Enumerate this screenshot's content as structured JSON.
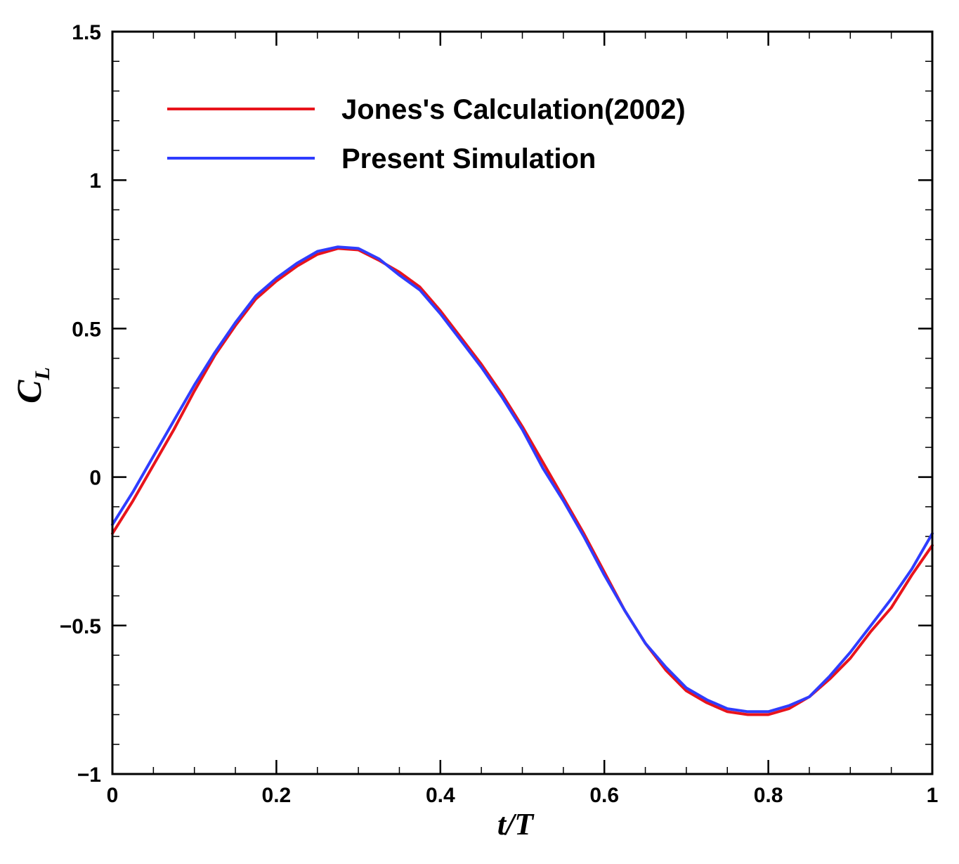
{
  "chart_data": {
    "type": "line",
    "xlabel": "t/T",
    "ylabel": "C",
    "ylabel_subscript": "L",
    "xlim": [
      0,
      1
    ],
    "ylim": [
      -1,
      1.5
    ],
    "x_ticks": [
      {
        "value": 0,
        "label": "0"
      },
      {
        "value": 0.2,
        "label": "0.2"
      },
      {
        "value": 0.4,
        "label": "0.4"
      },
      {
        "value": 0.6,
        "label": "0.6"
      },
      {
        "value": 0.8,
        "label": "0.8"
      },
      {
        "value": 1,
        "label": "1"
      }
    ],
    "y_ticks": [
      {
        "value": -1,
        "label": "−1"
      },
      {
        "value": -0.5,
        "label": "−0.5"
      },
      {
        "value": 0,
        "label": "0"
      },
      {
        "value": 0.5,
        "label": "0.5"
      },
      {
        "value": 1,
        "label": "1"
      },
      {
        "value": 1.5,
        "label": "1.5"
      }
    ],
    "x_minor_step": 0.05,
    "y_minor_step": 0.1,
    "grid": false,
    "legend_position": "top-left",
    "series": [
      {
        "name": "Jones's Calculation(2002)",
        "color": "#e8141c",
        "x": [
          0,
          0.025,
          0.05,
          0.075,
          0.1,
          0.125,
          0.15,
          0.175,
          0.2,
          0.225,
          0.25,
          0.275,
          0.3,
          0.325,
          0.35,
          0.375,
          0.4,
          0.425,
          0.45,
          0.475,
          0.5,
          0.525,
          0.55,
          0.575,
          0.6,
          0.625,
          0.65,
          0.675,
          0.7,
          0.725,
          0.75,
          0.775,
          0.8,
          0.825,
          0.85,
          0.875,
          0.9,
          0.925,
          0.95,
          0.975,
          1
        ],
        "y": [
          -0.19,
          -0.08,
          0.04,
          0.16,
          0.29,
          0.41,
          0.51,
          0.6,
          0.66,
          0.71,
          0.75,
          0.77,
          0.765,
          0.73,
          0.69,
          0.64,
          0.56,
          0.47,
          0.38,
          0.28,
          0.17,
          0.05,
          -0.07,
          -0.19,
          -0.32,
          -0.45,
          -0.56,
          -0.65,
          -0.72,
          -0.76,
          -0.79,
          -0.8,
          -0.8,
          -0.78,
          -0.74,
          -0.68,
          -0.61,
          -0.52,
          -0.44,
          -0.33,
          -0.23
        ]
      },
      {
        "name": "Present Simulation",
        "color": "#2f3cff",
        "x": [
          0,
          0.025,
          0.05,
          0.075,
          0.1,
          0.125,
          0.15,
          0.175,
          0.2,
          0.225,
          0.25,
          0.275,
          0.3,
          0.325,
          0.35,
          0.375,
          0.4,
          0.425,
          0.45,
          0.475,
          0.5,
          0.525,
          0.55,
          0.575,
          0.6,
          0.625,
          0.65,
          0.675,
          0.7,
          0.725,
          0.75,
          0.775,
          0.8,
          0.825,
          0.85,
          0.875,
          0.9,
          0.925,
          0.95,
          0.975,
          1
        ],
        "y": [
          -0.16,
          -0.05,
          0.07,
          0.19,
          0.31,
          0.42,
          0.52,
          0.61,
          0.67,
          0.72,
          0.76,
          0.775,
          0.77,
          0.735,
          0.68,
          0.63,
          0.55,
          0.46,
          0.37,
          0.27,
          0.16,
          0.03,
          -0.08,
          -0.2,
          -0.33,
          -0.45,
          -0.56,
          -0.64,
          -0.71,
          -0.75,
          -0.78,
          -0.79,
          -0.79,
          -0.77,
          -0.74,
          -0.67,
          -0.59,
          -0.5,
          -0.41,
          -0.31,
          -0.19
        ]
      }
    ]
  }
}
